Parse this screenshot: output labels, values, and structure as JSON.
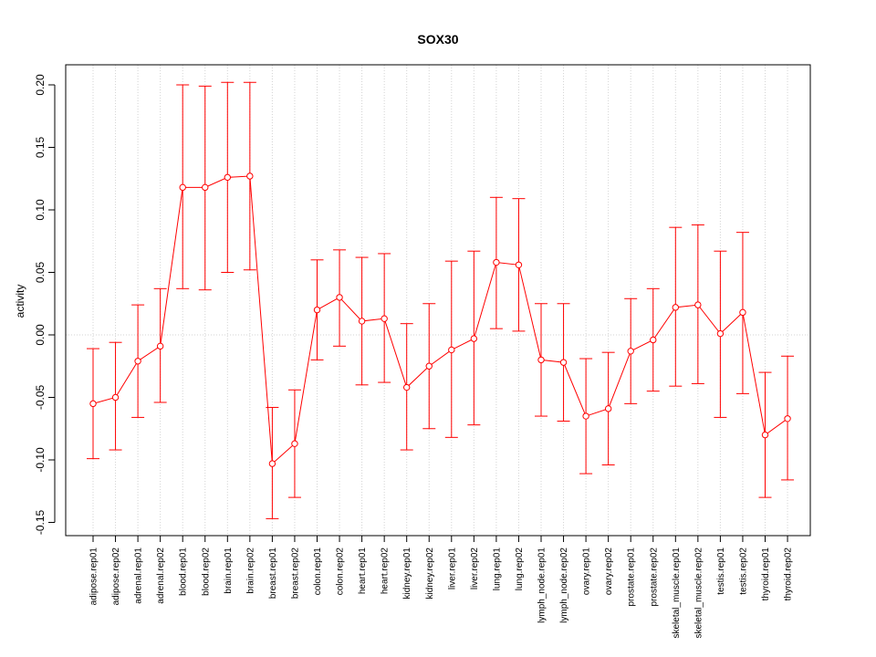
{
  "chart_data": {
    "type": "line",
    "title": "SOX30",
    "xlabel": "",
    "ylabel": "activity",
    "ylim": [
      -0.16,
      0.216
    ],
    "yticks": [
      -0.15,
      -0.1,
      -0.05,
      0.0,
      0.05,
      0.1,
      0.15,
      0.2
    ],
    "ytick_labels": [
      "-0.15",
      "-0.10",
      "-0.05",
      "0.00",
      "0.05",
      "0.10",
      "0.15",
      "0.20"
    ],
    "grid": true,
    "reference_line": 0,
    "color": "#ff0000",
    "categories": [
      "adipose.rep01",
      "adipose.rep02",
      "adrenal.rep01",
      "adrenal.rep02",
      "blood.rep01",
      "blood.rep02",
      "brain.rep01",
      "brain.rep02",
      "breast.rep01",
      "breast.rep02",
      "colon.rep01",
      "colon.rep02",
      "heart.rep01",
      "heart.rep02",
      "kidney.rep01",
      "kidney.rep02",
      "liver.rep01",
      "liver.rep02",
      "lung.rep01",
      "lung.rep02",
      "lymph_node.rep01",
      "lymph_node.rep02",
      "ovary.rep01",
      "ovary.rep02",
      "prostate.rep01",
      "prostate.rep02",
      "skeletal_muscle.rep01",
      "skeletal_muscle.rep02",
      "testis.rep01",
      "testis.rep02",
      "thyroid.rep01",
      "thyroid.rep02"
    ],
    "values": [
      -0.055,
      -0.05,
      -0.021,
      -0.009,
      0.118,
      0.118,
      0.126,
      0.127,
      -0.103,
      -0.087,
      0.02,
      0.03,
      0.011,
      0.013,
      -0.042,
      -0.025,
      -0.012,
      -0.003,
      0.058,
      0.056,
      -0.02,
      -0.022,
      -0.065,
      -0.059,
      -0.013,
      -0.004,
      0.022,
      0.024,
      0.001,
      0.018,
      -0.08,
      -0.067
    ],
    "upper": [
      -0.011,
      -0.006,
      0.024,
      0.037,
      0.2,
      0.199,
      0.202,
      0.202,
      -0.058,
      -0.044,
      0.06,
      0.068,
      0.062,
      0.065,
      0.009,
      0.025,
      0.059,
      0.067,
      0.11,
      0.109,
      0.025,
      0.025,
      -0.019,
      -0.014,
      0.029,
      0.037,
      0.086,
      0.088,
      0.067,
      0.082,
      -0.03,
      -0.017
    ],
    "lower": [
      -0.099,
      -0.092,
      -0.066,
      -0.054,
      0.037,
      0.036,
      0.05,
      0.052,
      -0.147,
      -0.13,
      -0.02,
      -0.009,
      -0.04,
      -0.038,
      -0.092,
      -0.075,
      -0.082,
      -0.072,
      0.005,
      0.003,
      -0.065,
      -0.069,
      -0.111,
      -0.104,
      -0.055,
      -0.045,
      -0.041,
      -0.039,
      -0.066,
      -0.047,
      -0.13,
      -0.116
    ]
  }
}
